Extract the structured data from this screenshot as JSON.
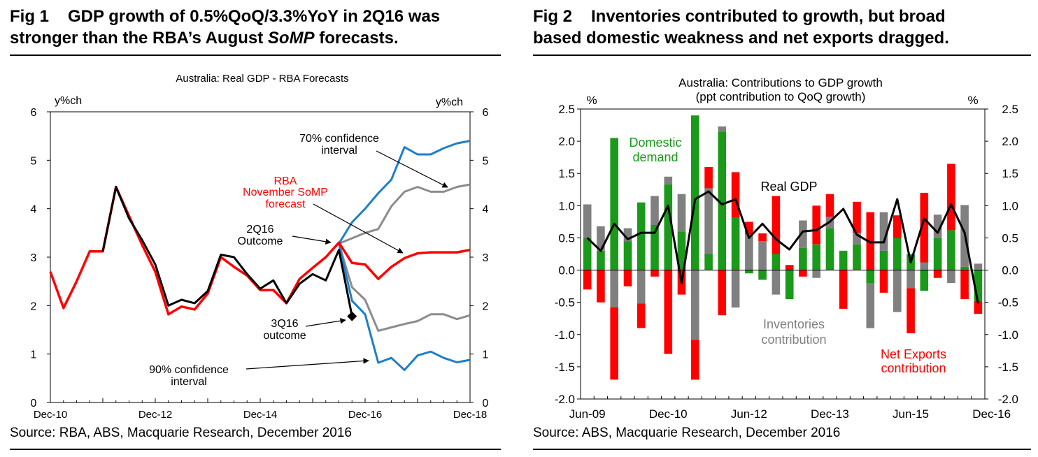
{
  "fig1": {
    "number": "Fig 1",
    "title_line1": "GDP growth of 0.5%QoQ/3.3%YoY in 2Q16 was",
    "title_line2_a": "stronger than the RBA’s August ",
    "title_line2_em": "SoMP",
    "title_line2_b": " forecasts.",
    "source": "Source: RBA, ABS, Macquarie Research, December 2016"
  },
  "fig2": {
    "number": "Fig 2",
    "title_line1": "Inventories contributed to growth, but broad",
    "title_line2": "based domestic weakness and net exports dragged.",
    "source": "Source: ABS, Macquarie Research, December 2016"
  },
  "colors": {
    "red": "#ff0000",
    "blue": "#1f7ec8",
    "grey": "#8c8c8c",
    "black": "#000000",
    "green": "#1a991a",
    "lgrey": "#808080"
  },
  "chart_data": [
    {
      "type": "line",
      "title": "Australia: Real GDP - RBA Forecasts",
      "ylabel_left": "y%ch",
      "ylabel_right": "y%ch",
      "ylim": [
        0,
        6
      ],
      "yticks": [
        "0",
        "1",
        "2",
        "3",
        "4",
        "5",
        "6"
      ],
      "xlim": [
        0,
        32
      ],
      "xticks": [
        {
          "label": "Dec-10",
          "x": 0
        },
        {
          "label": "Dec-12",
          "x": 8
        },
        {
          "label": "Dec-14",
          "x": 16
        },
        {
          "label": "Dec-16",
          "x": 24
        },
        {
          "label": "Dec-18",
          "x": 32
        }
      ],
      "series": [
        {
          "name": "RBA November SoMP forecast",
          "color": "red",
          "width": 3.5,
          "x": [
            0,
            1,
            2,
            3,
            4,
            5,
            6,
            7,
            8,
            9,
            10,
            11,
            12,
            13,
            14,
            15,
            16,
            17,
            18,
            19,
            20,
            21,
            22,
            23,
            24,
            25,
            26,
            27,
            28,
            29,
            30,
            31,
            32
          ],
          "y": [
            2.7,
            1.95,
            2.5,
            3.12,
            3.12,
            4.45,
            3.85,
            3.25,
            2.7,
            1.82,
            1.98,
            1.92,
            2.25,
            3.0,
            2.8,
            2.62,
            2.32,
            2.32,
            2.05,
            2.55,
            2.78,
            3.0,
            3.3,
            2.88,
            2.85,
            2.55,
            2.8,
            2.98,
            3.08,
            3.1,
            3.1,
            3.1,
            3.15
          ]
        },
        {
          "name": "GDP outcome",
          "color": "black",
          "width": 3,
          "x": [
            4,
            5,
            6,
            7,
            8,
            9,
            10,
            11,
            12,
            13,
            14,
            15,
            16,
            17,
            18,
            19,
            20,
            21,
            22,
            23
          ],
          "y": [
            3.12,
            4.45,
            3.8,
            3.35,
            2.85,
            2.0,
            2.12,
            2.05,
            2.3,
            3.05,
            3.0,
            2.65,
            2.35,
            2.52,
            2.05,
            2.45,
            2.65,
            2.52,
            3.15,
            1.78
          ]
        },
        {
          "name": "70% upper",
          "color": "grey",
          "width": 3,
          "x": [
            22,
            24,
            25,
            26,
            27,
            28,
            29,
            30,
            31,
            32
          ],
          "y": [
            3.28,
            3.5,
            3.58,
            4.05,
            4.35,
            4.45,
            4.35,
            4.35,
            4.45,
            4.5
          ]
        },
        {
          "name": "70% lower",
          "color": "grey",
          "width": 3,
          "x": [
            22,
            23,
            24,
            25,
            26,
            27,
            28,
            29,
            30,
            31,
            32
          ],
          "y": [
            3.28,
            2.38,
            2.12,
            1.48,
            1.55,
            1.62,
            1.68,
            1.82,
            1.82,
            1.72,
            1.8
          ]
        },
        {
          "name": "90% upper",
          "color": "blue",
          "width": 3,
          "x": [
            22,
            23,
            24,
            25,
            26,
            27,
            28,
            29,
            30,
            31,
            32
          ],
          "y": [
            3.28,
            3.72,
            4.0,
            4.32,
            4.6,
            5.27,
            5.12,
            5.12,
            5.25,
            5.35,
            5.4
          ]
        },
        {
          "name": "90% lower",
          "color": "blue",
          "width": 3,
          "x": [
            22,
            23,
            24,
            25,
            26,
            27,
            28,
            29,
            30,
            31,
            32
          ],
          "y": [
            3.28,
            2.1,
            1.82,
            0.82,
            0.92,
            0.67,
            0.97,
            1.05,
            0.92,
            0.83,
            0.88
          ]
        }
      ],
      "marker": {
        "label": "3Q16 outcome",
        "x": 23,
        "y": 1.78
      },
      "annotations": {
        "ci70_line1": "70% confidence",
        "ci70_line2": "interval",
        "rba_line1": "RBA",
        "rba_line2": "November SoMP",
        "rba_line3": "forecast",
        "q2_line1": "2Q16",
        "q2_line2": "Outcome",
        "q3_line1": "3Q16",
        "q3_line2": "outcome",
        "ci90_line1": "90% confidence",
        "ci90_line2": "interval"
      }
    },
    {
      "type": "bar",
      "stacked": true,
      "title_line1": "Australia: Contributions to GDP growth",
      "title_line2": "(ppt contribution to QoQ growth)",
      "ylabel_left": "%",
      "ylabel_right": "%",
      "ylim": [
        -2.0,
        2.5
      ],
      "yticks": [
        "2.5",
        "2.0",
        "1.5",
        "1.0",
        "0.5",
        "0.0",
        "-0.5",
        "-1.0",
        "-1.5",
        "-2.0"
      ],
      "xlim": [
        -0.5,
        29.5
      ],
      "xticks": [
        {
          "label": "Jun-09",
          "x": 0
        },
        {
          "label": "Dec-10",
          "x": 6
        },
        {
          "label": "Jun-12",
          "x": 12
        },
        {
          "label": "Dec-13",
          "x": 18
        },
        {
          "label": "Jun-15",
          "x": 24
        },
        {
          "label": "Dec-16",
          "x": 30
        }
      ],
      "series": [
        {
          "name": "Domestic demand",
          "color": "green",
          "values": [
            0.5,
            0.3,
            2.05,
            0.45,
            1.05,
            0.7,
            1.33,
            0.6,
            2.4,
            0.25,
            2.15,
            0.82,
            -0.05,
            -0.15,
            0.25,
            -0.45,
            0.35,
            0.4,
            0.65,
            0.3,
            0.4,
            -0.2,
            0.3,
            0.5,
            0.25,
            -0.32,
            0.5,
            0.62,
            0.05,
            -0.48
          ]
        },
        {
          "name": "Inventories contribution",
          "color": "lgrey",
          "values": [
            0.52,
            0.38,
            -0.58,
            0.2,
            -0.52,
            0.45,
            0.12,
            0.58,
            -1.08,
            1.02,
            0.08,
            -0.58,
            0.55,
            0.45,
            -0.38,
            0.0,
            0.42,
            -0.12,
            0.18,
            0.0,
            0.18,
            -0.7,
            0.6,
            -0.65,
            -0.28,
            0.12,
            0.36,
            -0.2,
            0.96,
            0.1
          ]
        },
        {
          "name": "Net Exports contribution",
          "color": "red",
          "values": [
            -0.3,
            -0.5,
            -1.12,
            -0.25,
            -0.38,
            -0.1,
            -1.3,
            -0.38,
            -0.62,
            0.33,
            -0.7,
            0.7,
            0.2,
            0.12,
            0.9,
            0.08,
            -0.1,
            0.6,
            0.35,
            -0.6,
            0.48,
            0.9,
            -0.35,
            0.35,
            -0.7,
            1.08,
            -0.12,
            1.03,
            -0.45,
            -0.2
          ]
        },
        {
          "name": "Real GDP",
          "color": "black",
          "type": "line",
          "values": [
            0.5,
            0.3,
            0.72,
            0.48,
            0.58,
            0.58,
            1.0,
            -0.2,
            1.1,
            1.22,
            1.02,
            1.1,
            0.5,
            0.72,
            0.48,
            0.32,
            0.6,
            0.62,
            0.75,
            0.95,
            0.55,
            0.43,
            0.43,
            1.1,
            0.12,
            0.8,
            0.58,
            1.02,
            0.58,
            -0.52
          ]
        }
      ],
      "annotations": {
        "domestic_line1": "Domestic",
        "domestic_line2": "demand",
        "realgdp": "Real GDP",
        "inv_line1": "Inventories",
        "inv_line2": "contribution",
        "nx_line1": "Net Exports",
        "nx_line2": "contribution"
      }
    }
  ]
}
